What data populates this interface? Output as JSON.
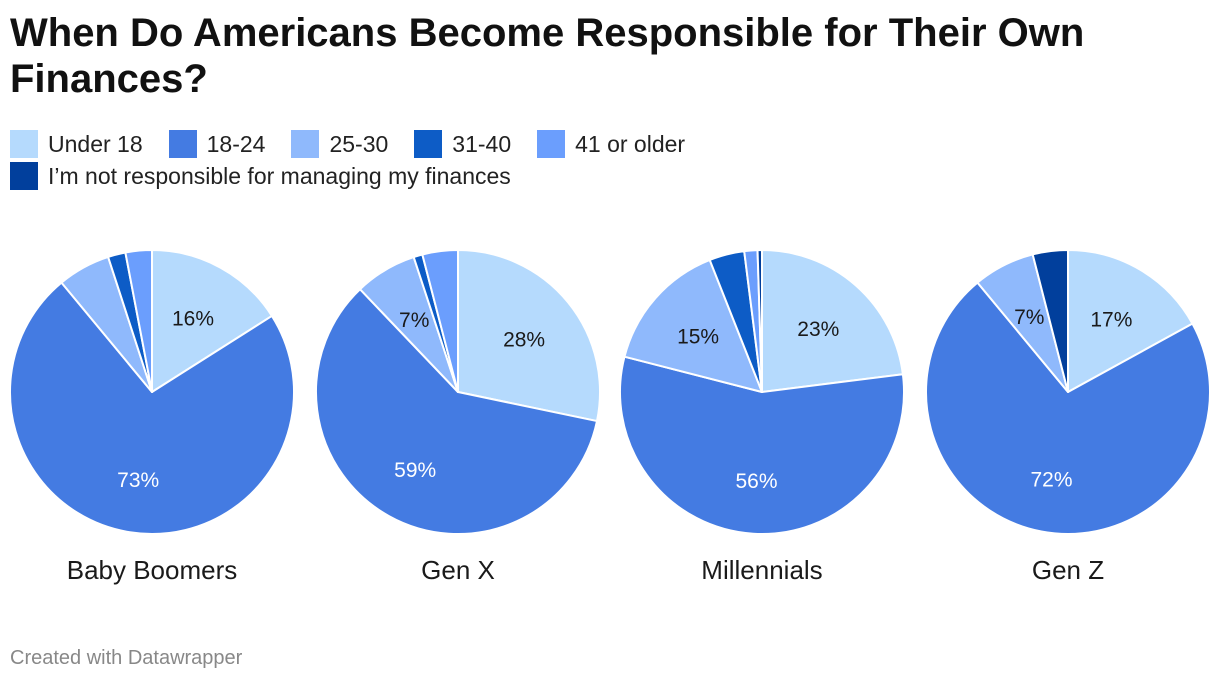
{
  "title": "When Do Americans Become Responsible for Their Own Finances?",
  "footer": "Created with Datawrapper",
  "legend": [
    {
      "label": "Under 18",
      "color": "#b5dafd"
    },
    {
      "label": "18-24",
      "color": "#447be2"
    },
    {
      "label": "25-30",
      "color": "#8fb9fc"
    },
    {
      "label": "31-40",
      "color": "#0d5cc6"
    },
    {
      "label": "41 or older",
      "color": "#6b9efd"
    },
    {
      "label": "I’m not responsible for managing my finances",
      "color": "#013f9c"
    }
  ],
  "chart_data": {
    "type": "pie",
    "title": "When Do Americans Become Responsible for Their Own Finances?",
    "categories": [
      "Under 18",
      "18-24",
      "25-30",
      "31-40",
      "41 or older",
      "I’m not responsible for managing my finances"
    ],
    "series": [
      {
        "name": "Baby Boomers",
        "values": [
          16,
          73,
          6,
          2,
          3,
          0
        ],
        "labels": [
          "16%",
          "73%",
          "",
          "",
          "",
          ""
        ]
      },
      {
        "name": "Gen X",
        "values": [
          28,
          59,
          7,
          1,
          4,
          0
        ],
        "labels": [
          "28%",
          "59%",
          "7%",
          "",
          "",
          ""
        ]
      },
      {
        "name": "Millennials",
        "values": [
          23,
          56,
          15,
          4,
          1.5,
          0.5
        ],
        "labels": [
          "23%",
          "56%",
          "15%",
          "",
          "",
          ""
        ]
      },
      {
        "name": "Gen Z",
        "values": [
          17,
          72,
          7,
          0,
          0,
          4
        ],
        "labels": [
          "17%",
          "72%",
          "7%",
          "",
          "",
          ""
        ]
      }
    ],
    "legend_position": "top-left"
  }
}
